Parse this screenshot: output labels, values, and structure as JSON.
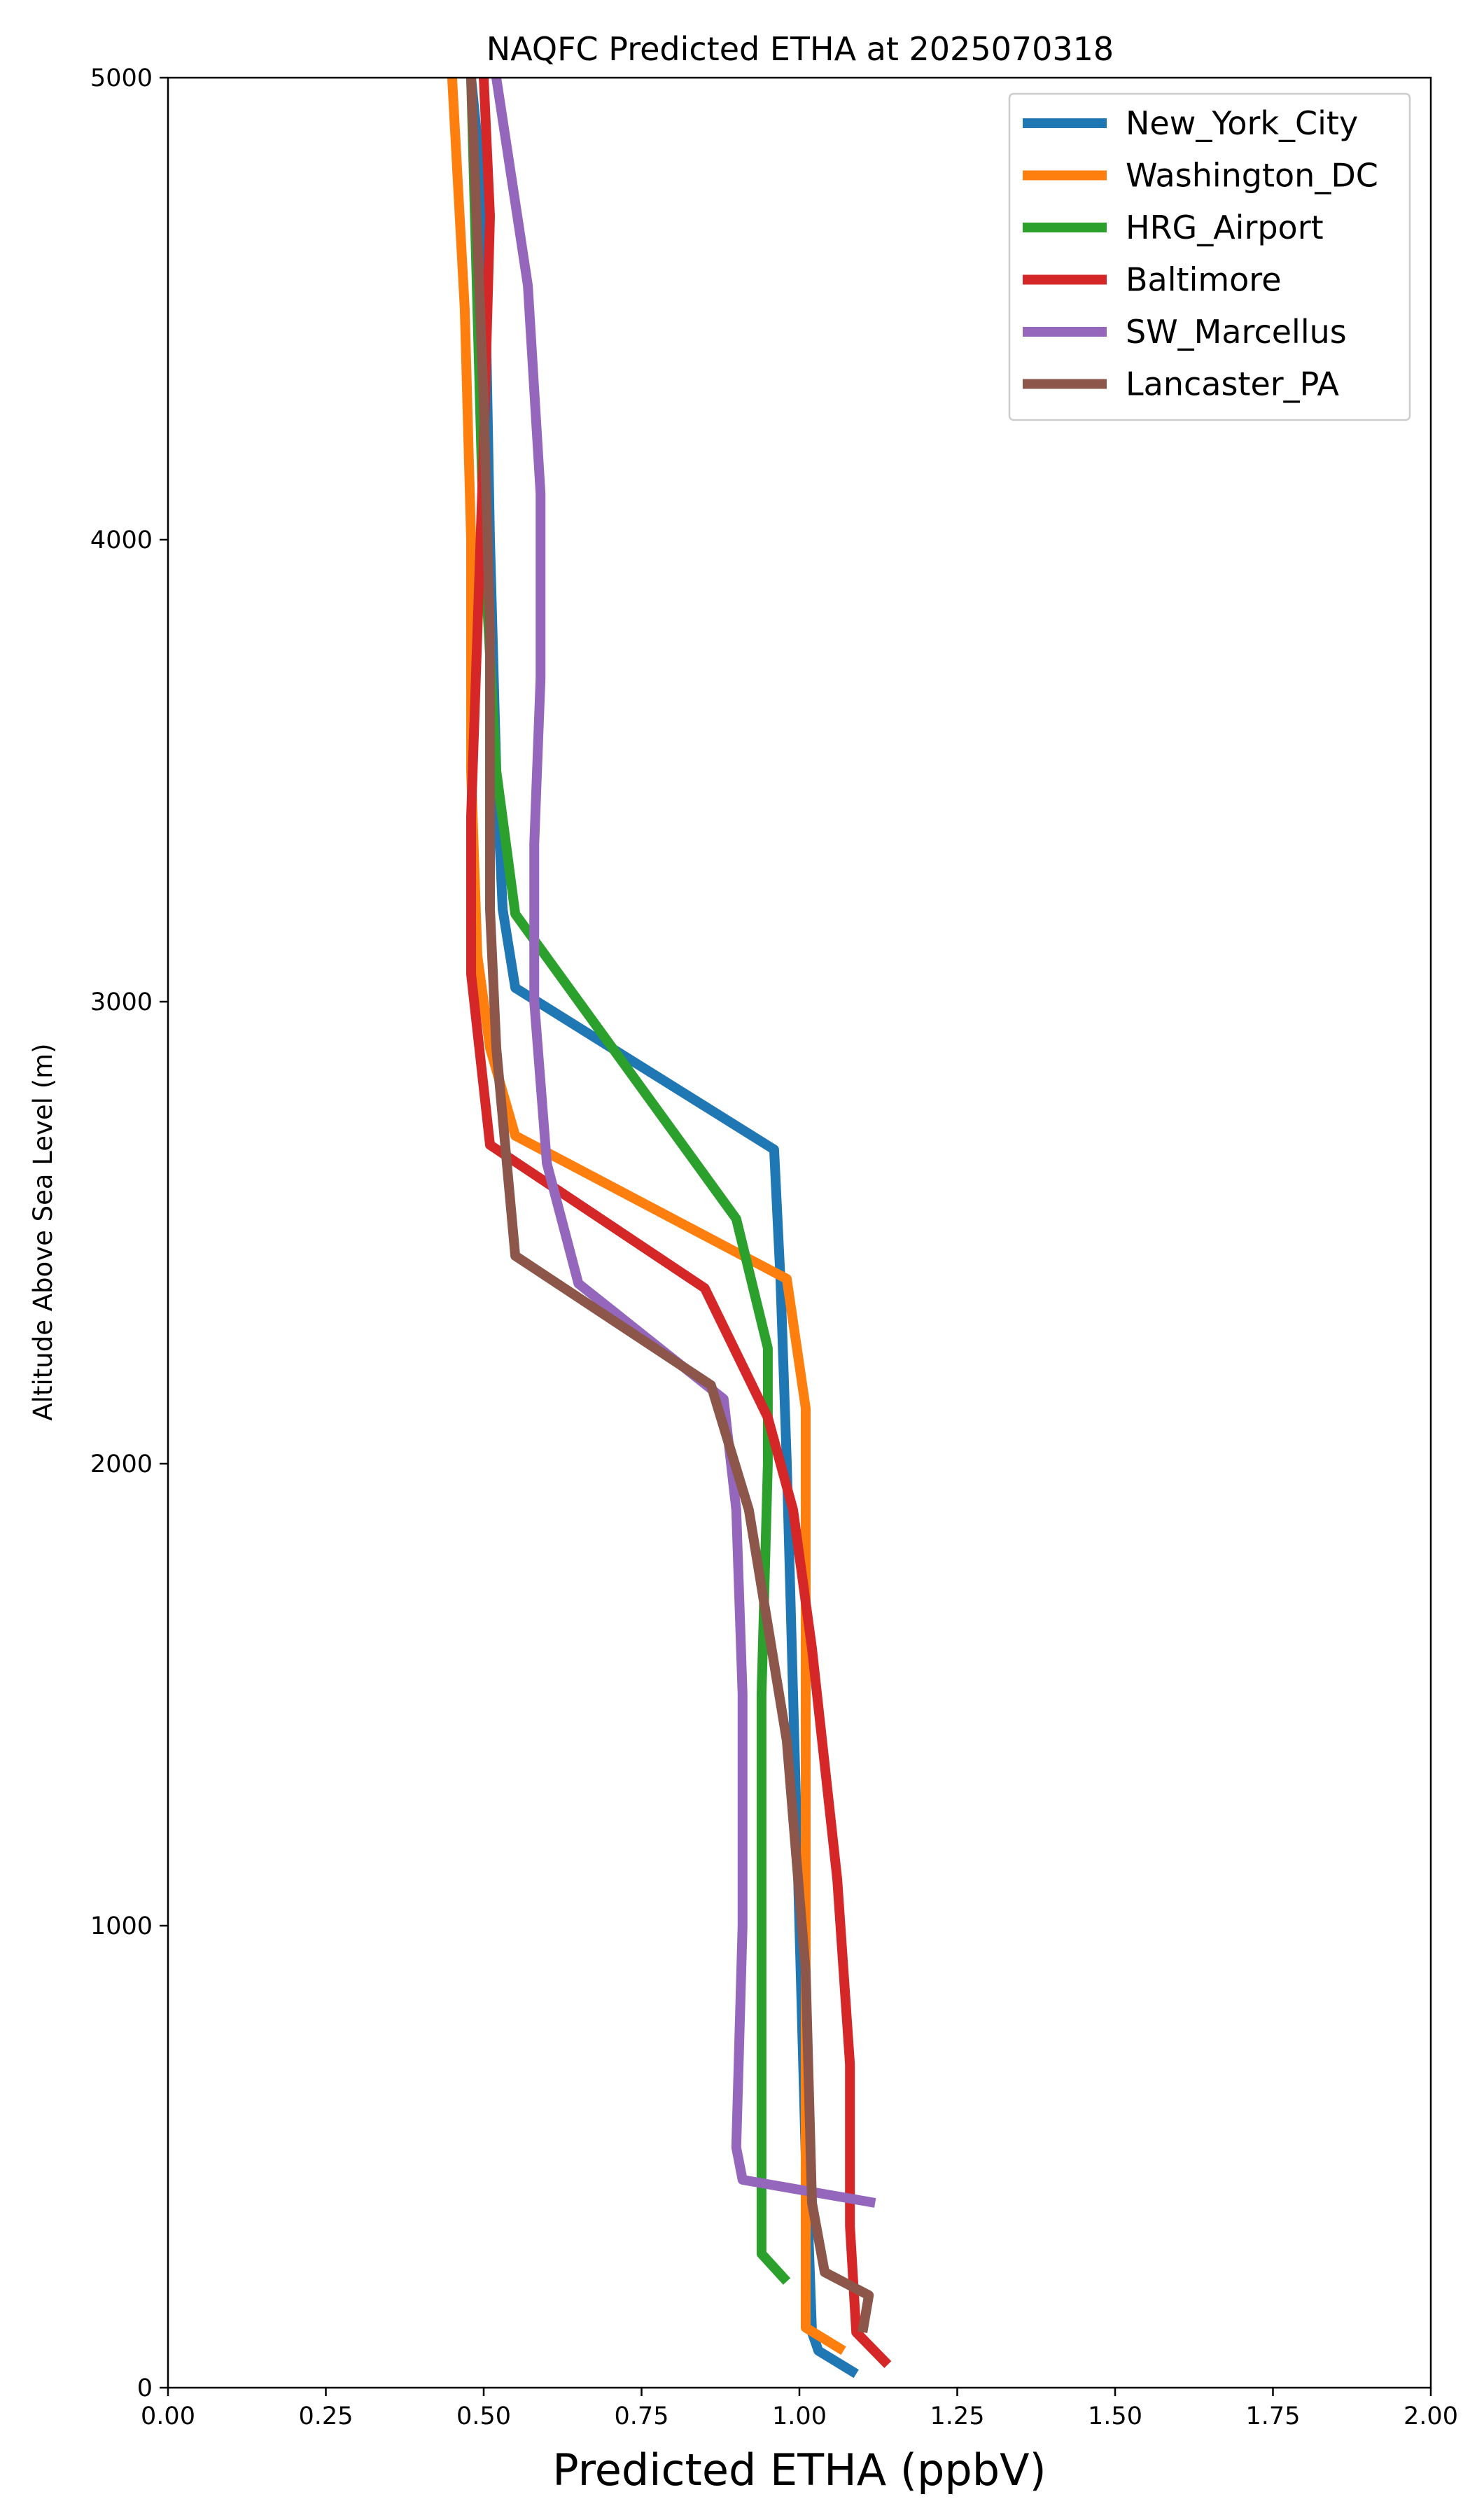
{
  "chart_data": {
    "type": "line",
    "title": "NAQFC Predicted ETHA at 2025070318",
    "xlabel": "Predicted ETHA (ppbV)",
    "ylabel": "Altitude Above Sea Level (m)",
    "xlim": [
      0.0,
      2.0
    ],
    "ylim": [
      0,
      5000
    ],
    "xticks": [
      "0.00",
      "0.25",
      "0.50",
      "0.75",
      "1.00",
      "1.25",
      "1.50",
      "1.75",
      "2.00"
    ],
    "yticks": [
      "0",
      "1000",
      "2000",
      "3000",
      "4000",
      "5000"
    ],
    "grid": false,
    "legend_position": "top-right",
    "series": [
      {
        "name": "New_York_City",
        "color": "#1f77b4",
        "points": [
          [
            1.09,
            30
          ],
          [
            1.03,
            80
          ],
          [
            1.02,
            120
          ],
          [
            1.01,
            500
          ],
          [
            1.0,
            1000
          ],
          [
            0.99,
            1500
          ],
          [
            0.98,
            2000
          ],
          [
            0.97,
            2400
          ],
          [
            0.96,
            2680
          ],
          [
            0.55,
            3030
          ],
          [
            0.53,
            3200
          ],
          [
            0.52,
            3500
          ],
          [
            0.51,
            4000
          ],
          [
            0.5,
            4730
          ],
          [
            0.48,
            5000
          ]
        ]
      },
      {
        "name": "Washington_DC",
        "color": "#ff7f0e",
        "points": [
          [
            1.07,
            80
          ],
          [
            1.01,
            130
          ],
          [
            1.01,
            500
          ],
          [
            1.01,
            1000
          ],
          [
            1.01,
            1500
          ],
          [
            1.01,
            2120
          ],
          [
            0.98,
            2400
          ],
          [
            0.55,
            2710
          ],
          [
            0.51,
            2900
          ],
          [
            0.49,
            3100
          ],
          [
            0.48,
            3500
          ],
          [
            0.48,
            4000
          ],
          [
            0.47,
            4500
          ],
          [
            0.45,
            5000
          ]
        ]
      },
      {
        "name": "HRG_Airport",
        "color": "#2ca02c",
        "points": [
          [
            0.98,
            230
          ],
          [
            0.94,
            290
          ],
          [
            0.94,
            500
          ],
          [
            0.94,
            1000
          ],
          [
            0.94,
            1500
          ],
          [
            0.95,
            2000
          ],
          [
            0.95,
            2250
          ],
          [
            0.9,
            2530
          ],
          [
            0.55,
            3190
          ],
          [
            0.52,
            3500
          ],
          [
            0.5,
            4000
          ],
          [
            0.49,
            4500
          ],
          [
            0.48,
            5000
          ]
        ]
      },
      {
        "name": "Baltimore",
        "color": "#d62728",
        "points": [
          [
            1.14,
            50
          ],
          [
            1.09,
            120
          ],
          [
            1.08,
            350
          ],
          [
            1.08,
            700
          ],
          [
            1.06,
            1100
          ],
          [
            1.02,
            1600
          ],
          [
            0.99,
            1900
          ],
          [
            0.95,
            2100
          ],
          [
            0.85,
            2380
          ],
          [
            0.51,
            2690
          ],
          [
            0.48,
            3060
          ],
          [
            0.48,
            3400
          ],
          [
            0.49,
            3800
          ],
          [
            0.5,
            4200
          ],
          [
            0.51,
            4700
          ],
          [
            0.5,
            5000
          ]
        ]
      },
      {
        "name": "SW_Marcellus",
        "color": "#9467bd",
        "points": [
          [
            1.12,
            400
          ],
          [
            0.91,
            450
          ],
          [
            0.9,
            520
          ],
          [
            0.91,
            1000
          ],
          [
            0.91,
            1500
          ],
          [
            0.9,
            1900
          ],
          [
            0.88,
            2140
          ],
          [
            0.65,
            2390
          ],
          [
            0.6,
            2650
          ],
          [
            0.58,
            3000
          ],
          [
            0.58,
            3340
          ],
          [
            0.59,
            3700
          ],
          [
            0.59,
            4100
          ],
          [
            0.57,
            4550
          ],
          [
            0.52,
            5000
          ]
        ]
      },
      {
        "name": "Lancaster_PA",
        "color": "#8c564b",
        "points": [
          [
            1.1,
            120
          ],
          [
            1.11,
            200
          ],
          [
            1.04,
            250
          ],
          [
            1.02,
            400
          ],
          [
            1.01,
            900
          ],
          [
            0.98,
            1400
          ],
          [
            0.92,
            1900
          ],
          [
            0.86,
            2170
          ],
          [
            0.55,
            2450
          ],
          [
            0.52,
            2900
          ],
          [
            0.51,
            3200
          ],
          [
            0.51,
            3800
          ],
          [
            0.5,
            4300
          ],
          [
            0.48,
            5000
          ]
        ]
      }
    ]
  }
}
